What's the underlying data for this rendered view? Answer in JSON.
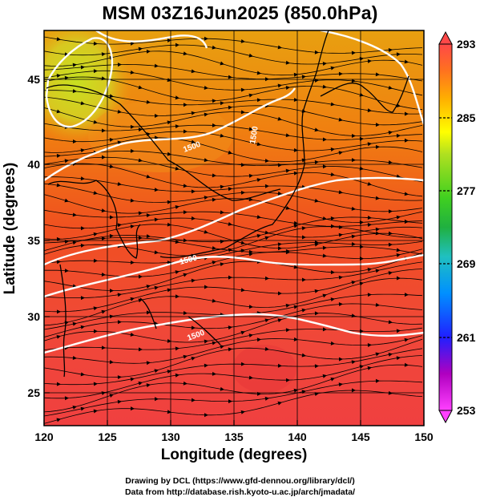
{
  "title": "MSM 03Z16Jun2025 (850.0hPa)",
  "map": {
    "lon_range": [
      120,
      150
    ],
    "lat_range": [
      22.5,
      48
    ],
    "xlabel": "Longitude (degrees)",
    "ylabel": "Latitude  (degrees)",
    "x_ticks": [
      "120",
      "125",
      "130",
      "135",
      "140",
      "145",
      "150"
    ],
    "y_ticks": [
      "25",
      "30",
      "35",
      "40",
      "45"
    ],
    "x_tick_values": [
      120,
      125,
      130,
      135,
      140,
      145,
      150
    ],
    "y_tick_values": [
      25,
      30,
      35,
      40,
      45
    ],
    "fill": "temperature shading with wind streamlines and white geopotential height contours",
    "contour_labels": [
      "1500",
      "1500",
      "1500",
      "1500"
    ]
  },
  "colorbar": {
    "range": [
      253,
      293
    ],
    "tick_labels": [
      "293",
      "285",
      "277",
      "269",
      "261",
      "253"
    ],
    "tick_values": [
      293,
      285,
      277,
      269,
      261,
      253
    ],
    "colors": [
      "#ff40ff",
      "#b000c0",
      "#2020ff",
      "#00a0ff",
      "#20c0c0",
      "#20c060",
      "#40d020",
      "#a0e020",
      "#ffff00",
      "#ffc000",
      "#ff8000",
      "#ff4040"
    ]
  },
  "credits": {
    "line1": "Drawing by DCL (https://www.gfd-dennou.org/library/dcl/)",
    "line2": "Data from http://database.rish.kyoto-u.ac.jp/arch/jmadata/"
  }
}
